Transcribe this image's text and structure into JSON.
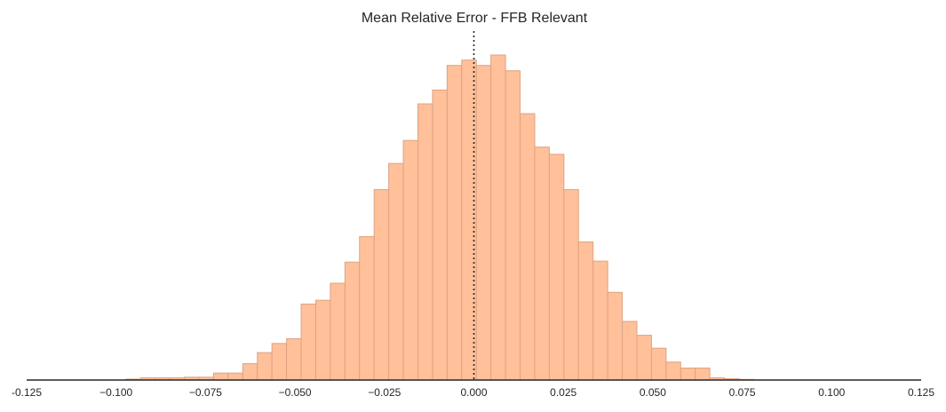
{
  "chart_data": {
    "type": "bar",
    "title": "Mean Relative Error - FFB Relevant",
    "xlabel": "",
    "ylabel": "",
    "xlim": [
      -0.125,
      0.125
    ],
    "ylim": [
      0,
      1.0
    ],
    "xticks": [
      -0.125,
      -0.1,
      -0.075,
      -0.05,
      -0.025,
      0.0,
      0.025,
      0.05,
      0.075,
      0.1,
      0.125
    ],
    "xtick_labels": [
      "-0.125",
      "−0.100",
      "−0.075",
      "−0.050",
      "−0.025",
      "0.000",
      "0.025",
      "0.050",
      "0.075",
      "0.100",
      "0.125"
    ],
    "grid": false,
    "bin_width": 0.00408,
    "bins": [
      {
        "x0": -0.09724,
        "count": 0.003
      },
      {
        "x0": -0.09316,
        "count": 0.007
      },
      {
        "x0": -0.08908,
        "count": 0.007
      },
      {
        "x0": -0.085,
        "count": 0.007
      },
      {
        "x0": -0.08092,
        "count": 0.009
      },
      {
        "x0": -0.07684,
        "count": 0.009
      },
      {
        "x0": -0.07276,
        "count": 0.022
      },
      {
        "x0": -0.06868,
        "count": 0.022
      },
      {
        "x0": -0.0646,
        "count": 0.052
      },
      {
        "x0": -0.06052,
        "count": 0.087
      },
      {
        "x0": -0.05644,
        "count": 0.116
      },
      {
        "x0": -0.05236,
        "count": 0.131
      },
      {
        "x0": -0.04828,
        "count": 0.241
      },
      {
        "x0": -0.0442,
        "count": 0.253
      },
      {
        "x0": -0.04012,
        "count": 0.307
      },
      {
        "x0": -0.03604,
        "count": 0.374
      },
      {
        "x0": -0.03196,
        "count": 0.455
      },
      {
        "x0": -0.02788,
        "count": 0.604
      },
      {
        "x0": -0.0238,
        "count": 0.687
      },
      {
        "x0": -0.01972,
        "count": 0.76
      },
      {
        "x0": -0.01564,
        "count": 0.876
      },
      {
        "x0": -0.01156,
        "count": 0.92
      },
      {
        "x0": -0.00748,
        "count": 0.998
      },
      {
        "x0": -0.0034,
        "count": 1.015
      },
      {
        "x0": 0.00068,
        "count": 0.998
      },
      {
        "x0": 0.00476,
        "count": 1.031
      },
      {
        "x0": 0.00884,
        "count": 0.981
      },
      {
        "x0": 0.01292,
        "count": 0.845
      },
      {
        "x0": 0.017,
        "count": 0.739
      },
      {
        "x0": 0.02108,
        "count": 0.716
      },
      {
        "x0": 0.02516,
        "count": 0.604
      },
      {
        "x0": 0.02924,
        "count": 0.438
      },
      {
        "x0": 0.03332,
        "count": 0.377
      },
      {
        "x0": 0.0374,
        "count": 0.278
      },
      {
        "x0": 0.04148,
        "count": 0.186
      },
      {
        "x0": 0.04556,
        "count": 0.142
      },
      {
        "x0": 0.04964,
        "count": 0.101
      },
      {
        "x0": 0.05372,
        "count": 0.057
      },
      {
        "x0": 0.0578,
        "count": 0.038
      },
      {
        "x0": 0.06188,
        "count": 0.038
      },
      {
        "x0": 0.06596,
        "count": 0.007
      },
      {
        "x0": 0.07004,
        "count": 0.004
      },
      {
        "x0": 0.07412,
        "count": 0.002
      }
    ],
    "reference_line": {
      "x": 0.0,
      "style": "dotted",
      "color": "#262626"
    },
    "bar_fill": "#ffc09a",
    "bar_edge": "#dea382",
    "axis_color": "#262626"
  }
}
